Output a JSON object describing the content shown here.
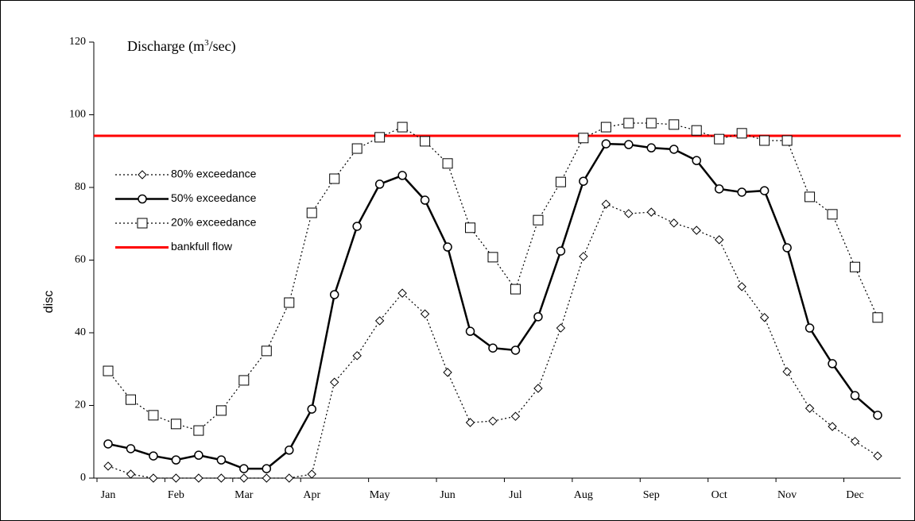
{
  "chart_data": {
    "type": "line",
    "title": [
      "Discharge (m",
      "3",
      "/sec)"
    ],
    "y_label": "disc",
    "categories": [
      "Jan",
      null,
      null,
      "Feb",
      null,
      null,
      "Mar",
      null,
      null,
      "Apr",
      null,
      null,
      "May",
      null,
      null,
      "Jun",
      null,
      null,
      "Jul",
      null,
      null,
      "Aug",
      null,
      null,
      "Sep",
      null,
      null,
      "Oct",
      null,
      null,
      "Nov",
      null,
      null,
      "Dec",
      null
    ],
    "series": [
      {
        "name": "80% exceedance",
        "color": "#000000",
        "style": "dotted",
        "marker": "diamond",
        "values": [
          3.3,
          1.1,
          0,
          0,
          0,
          0,
          0,
          0,
          0,
          1.1,
          26.4,
          33.7,
          43.3,
          50.9,
          45.2,
          29.1,
          15.3,
          15.7,
          17.0,
          24.7,
          41.3,
          61.0,
          75.4,
          72.8,
          73.2,
          70.2,
          68.2,
          65.6,
          52.7,
          44.2,
          29.3,
          19.2,
          14.2,
          10.1,
          6.1
        ]
      },
      {
        "name": "50% exceedance",
        "color": "#000000",
        "style": "solid",
        "marker": "circle",
        "values": [
          9.4,
          8.1,
          6.1,
          5.0,
          6.3,
          5.0,
          2.6,
          2.6,
          7.7,
          19.0,
          50.5,
          69.3,
          80.9,
          83.3,
          76.5,
          63.6,
          40.4,
          35.8,
          35.2,
          44.4,
          62.5,
          81.7,
          92.0,
          91.8,
          90.9,
          90.5,
          87.4,
          79.6,
          78.7,
          79.1,
          63.4,
          41.3,
          31.5,
          22.7,
          17.3
        ]
      },
      {
        "name": "20% exceedance",
        "color": "#000000",
        "style": "dotted",
        "marker": "square",
        "values": [
          29.5,
          21.6,
          17.3,
          14.9,
          13.1,
          18.6,
          26.9,
          35.0,
          48.3,
          73.0,
          82.4,
          90.7,
          93.8,
          96.6,
          92.7,
          86.6,
          68.9,
          60.8,
          52.0,
          71.0,
          81.5,
          93.6,
          96.6,
          97.7,
          97.7,
          97.3,
          95.7,
          93.3,
          94.9,
          92.9,
          92.9,
          77.4,
          72.6,
          58.1,
          44.2
        ]
      }
    ],
    "hlines": [
      {
        "name": "bankfull flow",
        "value": 94.2,
        "color": "#ff0000"
      }
    ],
    "ylim": [
      0,
      120
    ],
    "yticks": [
      0,
      20,
      40,
      60,
      80,
      100,
      120
    ],
    "grid": false
  }
}
